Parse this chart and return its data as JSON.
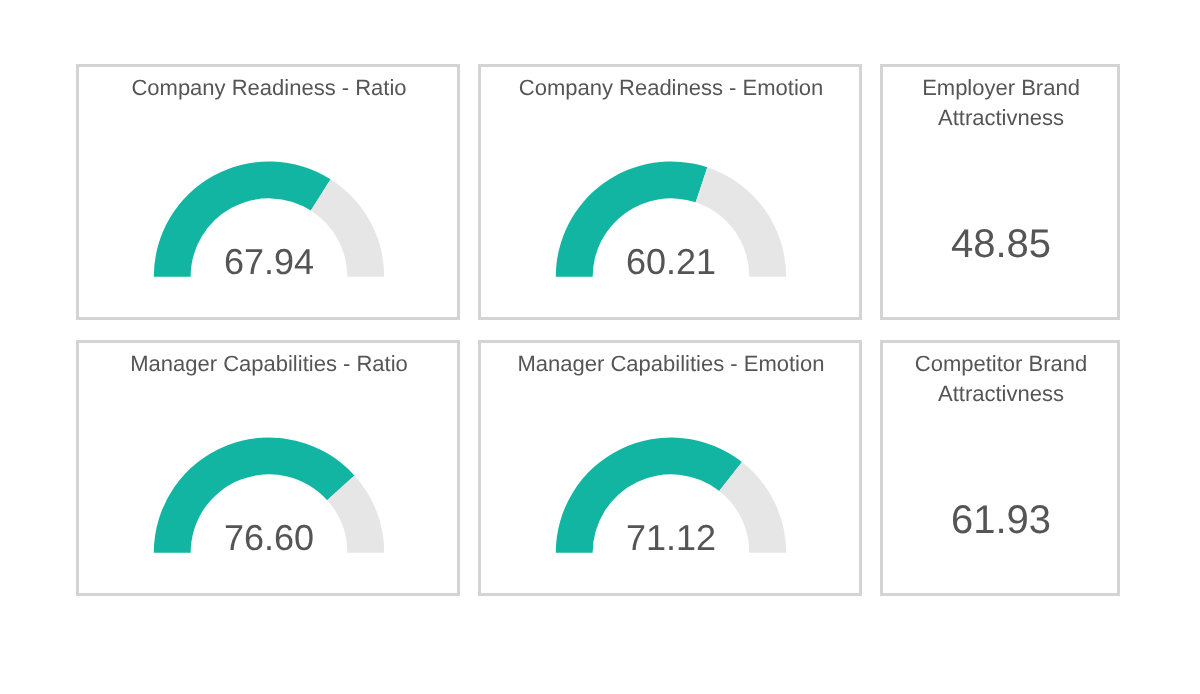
{
  "chart_data": [
    {
      "type": "donut",
      "title": "Company Readiness - Ratio",
      "categories": [
        null,
        null
      ],
      "values": [
        67.94,
        32.06
      ],
      "colors": [
        "#12b5a2",
        "#e6e6e6"
      ],
      "value_labels": [
        "67.94",
        null
      ]
    },
    {
      "type": "donut",
      "title": "Company Readiness - Emotion",
      "categories": [
        null,
        null
      ],
      "values": [
        60.21,
        39.79
      ],
      "colors": [
        "#12b5a2",
        "#e6e6e6"
      ],
      "value_labels": [
        "60.21",
        null
      ]
    },
    {
      "type": "other",
      "title": "Employer Brand Attractivness",
      "annotations": [
        "48.85"
      ]
    },
    {
      "type": "donut",
      "title": "Manager Capabilities - Ratio",
      "categories": [
        null,
        null
      ],
      "values": [
        76.6,
        23.4
      ],
      "colors": [
        "#12b5a2",
        "#e6e6e6"
      ],
      "value_labels": [
        "76.60",
        null
      ]
    },
    {
      "type": "donut",
      "title": "Manager Capabilities - Emotion",
      "categories": [
        null,
        null
      ],
      "values": [
        71.12,
        28.88
      ],
      "colors": [
        "#12b5a2",
        "#e6e6e6"
      ],
      "value_labels": [
        "71.12",
        null
      ]
    },
    {
      "type": "other",
      "title": "Competitor Brand Attractivness",
      "annotations": [
        "61.93"
      ]
    }
  ]
}
